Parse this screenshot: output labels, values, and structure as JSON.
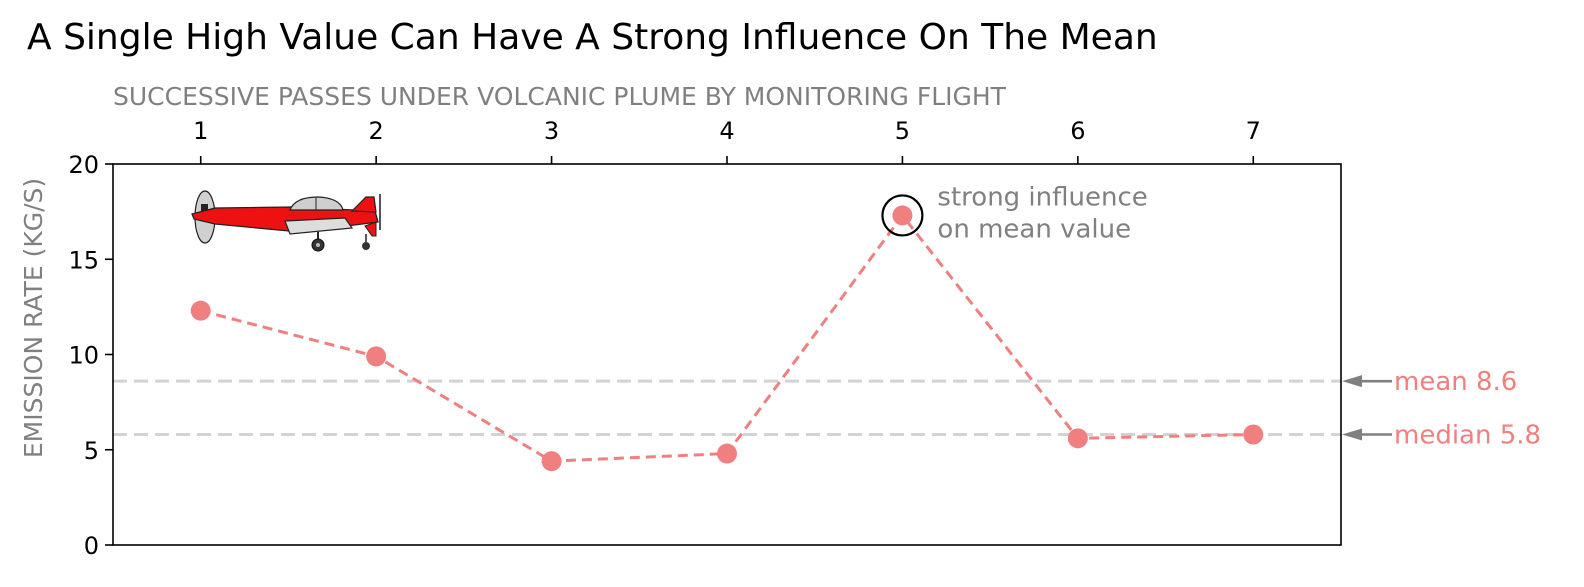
{
  "colors": {
    "series": "#f08080",
    "refline": "#d3d3d3",
    "arrow": "#808080",
    "annotation": "#808080",
    "axis": "#000000"
  },
  "icons": {
    "aircraft": "airplane-icon"
  },
  "chart_data": {
    "type": "line",
    "title": "A Single High Value Can Have A Strong Influence On The Mean",
    "xlabel": "SUCCESSIVE PASSES UNDER VOLCANIC PLUME BY MONITORING FLIGHT",
    "ylabel": "EMISSION RATE (KG/S)",
    "x": [
      1,
      2,
      3,
      4,
      5,
      6,
      7
    ],
    "series": [
      {
        "values": [
          12.3,
          9.9,
          4.4,
          4.8,
          17.3,
          5.6,
          5.8
        ]
      }
    ],
    "xlim": [
      0.5,
      7.5
    ],
    "ylim": [
      0,
      20
    ],
    "xticks": [
      1,
      2,
      3,
      4,
      5,
      6,
      7
    ],
    "yticks": [
      0,
      5,
      10,
      15,
      20
    ],
    "x_axis_position": "top",
    "line_style": "dashed",
    "grid": false,
    "reference_lines": [
      {
        "label": "mean 8.6",
        "value": 8.6
      },
      {
        "label": "median 5.8",
        "value": 5.8
      }
    ],
    "annotations": [
      {
        "lines": [
          "strong influence",
          "on mean value"
        ],
        "x": 5,
        "y": 17.3
      }
    ]
  }
}
